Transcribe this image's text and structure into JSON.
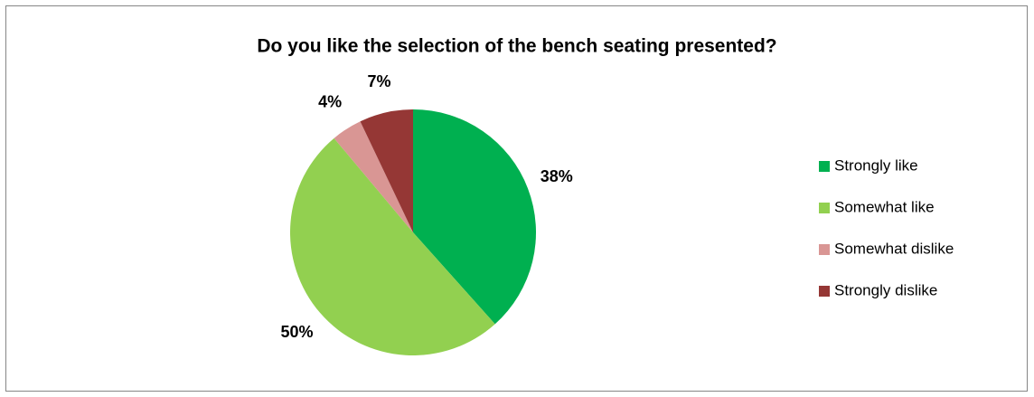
{
  "chart_data": {
    "type": "pie",
    "title": "Do you like the selection of the bench seating presented?",
    "categories": [
      "Strongly like",
      "Somewhat like",
      "Somewhat dislike",
      "Strongly dislike"
    ],
    "values": [
      38,
      50,
      4,
      7
    ],
    "value_labels": [
      "38%",
      "50%",
      "4%",
      "7%"
    ],
    "colors": [
      "#00b050",
      "#92d050",
      "#d99694",
      "#953735"
    ],
    "legend": "right"
  }
}
